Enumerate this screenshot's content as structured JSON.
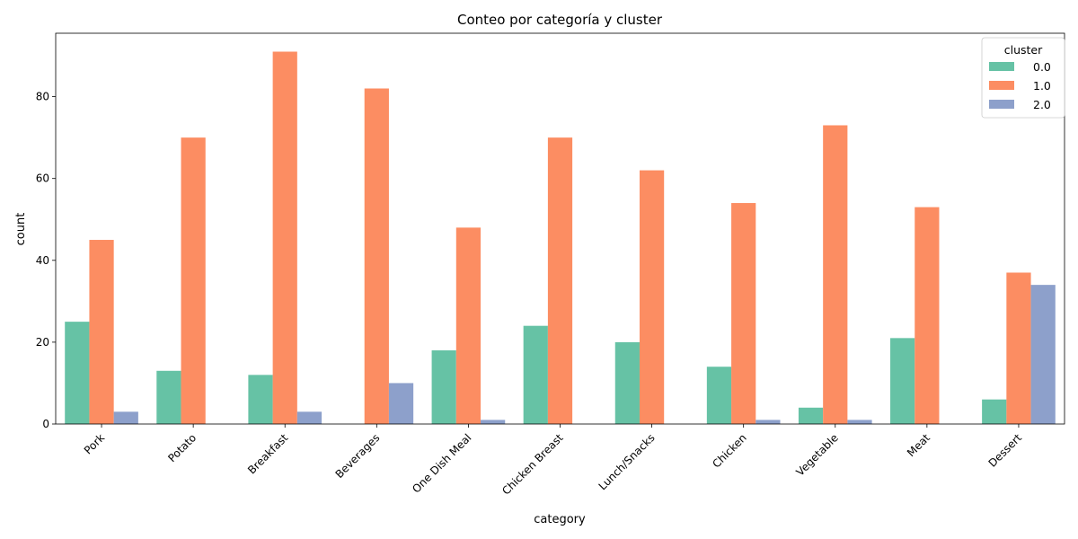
{
  "chart_data": {
    "type": "bar",
    "title": "Conteo por categoría y cluster",
    "xlabel": "category",
    "ylabel": "count",
    "categories": [
      "Pork",
      "Potato",
      "Breakfast",
      "Beverages",
      "One Dish Meal",
      "Chicken Breast",
      "Lunch/Snacks",
      "Chicken",
      "Vegetable",
      "Meat",
      "Dessert"
    ],
    "ylim": [
      0,
      95.5
    ],
    "yticks": [
      0,
      20,
      40,
      60,
      80
    ],
    "legend": {
      "title": "cluster",
      "position": "top-right"
    },
    "grid": false,
    "series": [
      {
        "name": "0.0",
        "color": "#66c2a5",
        "values": [
          25,
          13,
          12,
          0,
          18,
          24,
          20,
          14,
          4,
          21,
          6
        ]
      },
      {
        "name": "1.0",
        "color": "#fc8d62",
        "values": [
          45,
          70,
          91,
          82,
          48,
          70,
          62,
          54,
          73,
          53,
          37
        ]
      },
      {
        "name": "2.0",
        "color": "#8da0cb",
        "values": [
          3,
          0,
          3,
          10,
          1,
          0,
          0,
          1,
          1,
          0,
          34
        ]
      }
    ]
  }
}
